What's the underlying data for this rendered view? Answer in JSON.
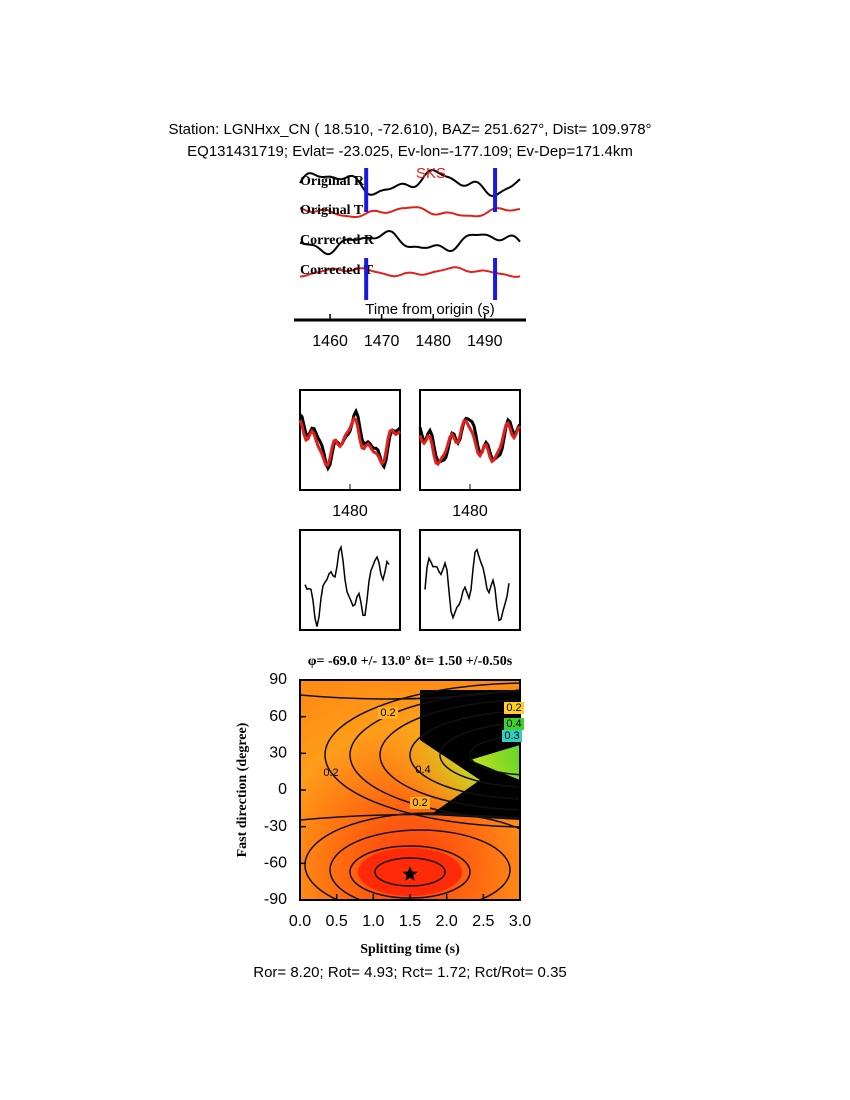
{
  "chart_data": [
    {
      "type": "traces",
      "title": "Station: LGNHxx_CN (  18.510,  -72.610), BAZ=  251.627°, Dist=  109.978°",
      "subtitle": "EQ131431719; Evlat= -23.025, Ev-lon=-177.109; Ev-Dep=171.4km",
      "annotation": "SKS",
      "annotation_color": "#e0201b",
      "series": [
        {
          "name": "Original R",
          "color": "#000000"
        },
        {
          "name": "Original T",
          "color": "#e0201b"
        },
        {
          "name": "Corrected R",
          "color": "#000000"
        },
        {
          "name": "Corrected T",
          "color": "#e0201b"
        }
      ],
      "window": [
        1467,
        1492
      ],
      "window_color": "#1a1adf",
      "xlabel": "Time from origin (s)",
      "xlim": [
        1453,
        1498
      ],
      "xticks": [
        1460,
        1470,
        1480,
        1490
      ]
    },
    {
      "type": "waveform-compare",
      "xlim": [
        1470,
        1490
      ],
      "xticks": [
        1480
      ]
    },
    {
      "type": "waveform-compare",
      "xlim": [
        1470,
        1490
      ],
      "xticks": [
        1480
      ]
    },
    {
      "type": "contour",
      "title": "φ= -69.0 +/- 13.0° δt= 1.50 +/-0.50s",
      "xlabel": "Splitting time (s)",
      "ylabel": "Fast direction (degree)",
      "xlim": [
        0,
        3
      ],
      "xticks": [
        {
          "value": 0,
          "label": "0.0"
        },
        0.5,
        {
          "value": 1,
          "label": "1.0"
        },
        1.5,
        {
          "value": 2,
          "label": "2.0"
        },
        2.5,
        {
          "value": 3,
          "label": "3.0"
        }
      ],
      "ylim": [
        -90,
        90
      ],
      "yticks": [
        -90,
        -60,
        -30,
        0,
        30,
        60,
        90
      ],
      "best": {
        "x": 1.5,
        "y": -69
      },
      "contour_labels": [
        0.2,
        0.2,
        0.4,
        0.3,
        0.2,
        0.4,
        0.2
      ]
    },
    {
      "type": "text",
      "text": "Ror= 8.20; Rot= 4.93; Rct= 1.72; Rct/Rot= 0.35"
    }
  ]
}
